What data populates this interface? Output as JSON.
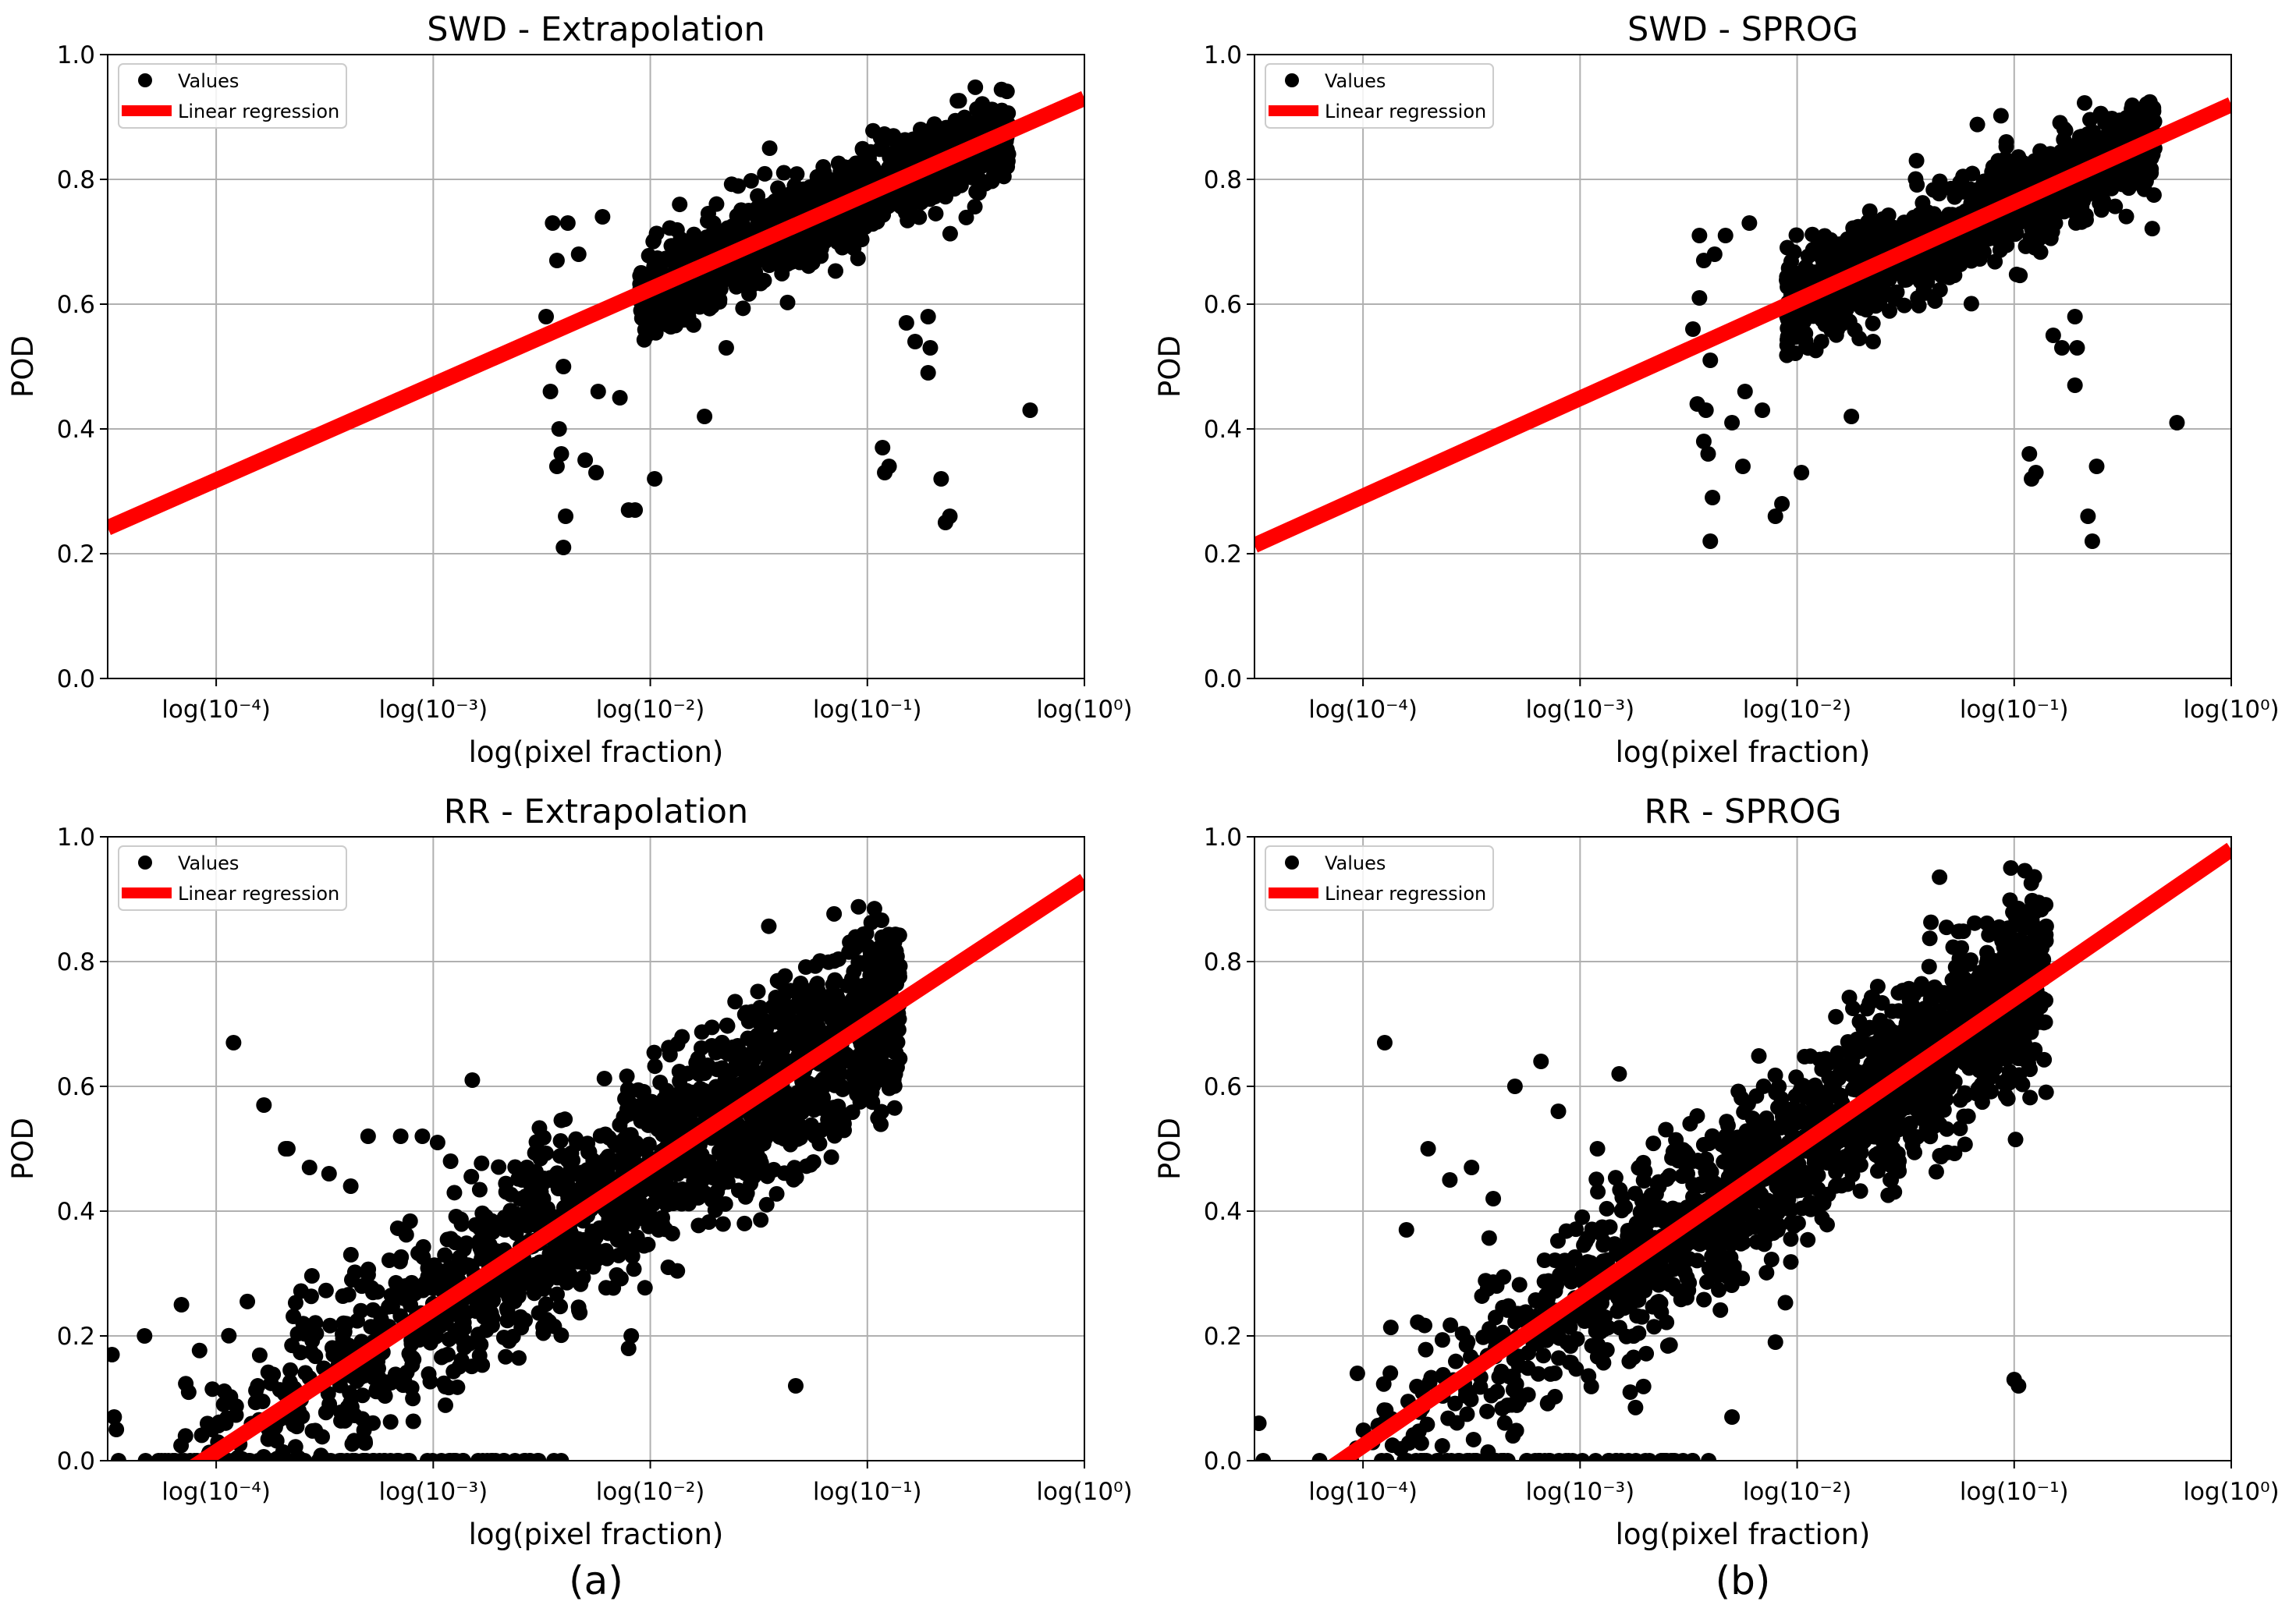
{
  "figure": {
    "captions": [
      "(a)",
      "(b)"
    ]
  },
  "colors": {
    "points": "#000000",
    "regression": "#ff0000",
    "grid": "#b0b0b0",
    "axes": "#000000",
    "legend_border": "#cccccc"
  },
  "chart_data": [
    {
      "id": "swd-extrapolation",
      "type": "scatter",
      "title": "SWD - Extrapolation",
      "xlabel": "log(pixel fraction)",
      "ylabel": "POD",
      "x_scale": "log10 exponent",
      "xlim": [
        -4.5,
        0
      ],
      "ylim": [
        0,
        1
      ],
      "xticks": [
        -4,
        -3,
        -2,
        -1,
        0
      ],
      "xtick_labels": [
        "log(10⁻⁴)",
        "log(10⁻³)",
        "log(10⁻²)",
        "log(10⁻¹)",
        "log(10⁰)"
      ],
      "yticks": [
        0,
        0.2,
        0.4,
        0.6,
        0.8,
        1.0
      ],
      "ytick_labels": [
        "0.0",
        "0.2",
        "0.4",
        "0.6",
        "0.8",
        "1.0"
      ],
      "grid": true,
      "legend": {
        "location": "upper-left",
        "entries": [
          "Values",
          "Linear regression"
        ]
      },
      "regression": {
        "slope": 0.153,
        "intercept": 0.93
      },
      "series": [
        {
          "name": "Values (dense cloud)",
          "generated": true,
          "x_range": [
            -2.05,
            -0.35
          ],
          "spread": 0.035,
          "count": 1100
        },
        {
          "name": "Values (outliers)",
          "points": [
            [
              -2.48,
              0.58
            ],
            [
              -2.45,
              0.73
            ],
            [
              -2.43,
              0.67
            ],
            [
              -2.38,
              0.73
            ],
            [
              -2.33,
              0.68
            ],
            [
              -2.22,
              0.74
            ],
            [
              -2.46,
              0.46
            ],
            [
              -2.43,
              0.34
            ],
            [
              -2.42,
              0.4
            ],
            [
              -2.41,
              0.36
            ],
            [
              -2.4,
              0.5
            ],
            [
              -2.39,
              0.26
            ],
            [
              -2.4,
              0.21
            ],
            [
              -2.3,
              0.35
            ],
            [
              -2.24,
              0.46
            ],
            [
              -2.25,
              0.33
            ],
            [
              -2.14,
              0.45
            ],
            [
              -2.1,
              0.27
            ],
            [
              -2.07,
              0.27
            ],
            [
              -1.98,
              0.32
            ],
            [
              -1.75,
              0.42
            ],
            [
              -1.65,
              0.53
            ],
            [
              -1.45,
              0.85
            ],
            [
              -0.93,
              0.37
            ],
            [
              -0.92,
              0.33
            ],
            [
              -0.9,
              0.34
            ],
            [
              -0.82,
              0.57
            ],
            [
              -0.78,
              0.54
            ],
            [
              -0.72,
              0.58
            ],
            [
              -0.72,
              0.49
            ],
            [
              -0.71,
              0.53
            ],
            [
              -0.66,
              0.32
            ],
            [
              -0.64,
              0.25
            ],
            [
              -0.62,
              0.26
            ],
            [
              -0.25,
              0.43
            ]
          ]
        }
      ]
    },
    {
      "id": "swd-sprog",
      "type": "scatter",
      "title": "SWD - SPROG",
      "xlabel": "log(pixel fraction)",
      "ylabel": "POD",
      "x_scale": "log10 exponent",
      "xlim": [
        -4.5,
        0
      ],
      "ylim": [
        0,
        1
      ],
      "xticks": [
        -4,
        -3,
        -2,
        -1,
        0
      ],
      "xtick_labels": [
        "log(10⁻⁴)",
        "log(10⁻³)",
        "log(10⁻²)",
        "log(10⁻¹)",
        "log(10⁰)"
      ],
      "yticks": [
        0,
        0.2,
        0.4,
        0.6,
        0.8,
        1.0
      ],
      "ytick_labels": [
        "0.0",
        "0.2",
        "0.4",
        "0.6",
        "0.8",
        "1.0"
      ],
      "grid": true,
      "legend": {
        "location": "upper-left",
        "entries": [
          "Values",
          "Linear regression"
        ]
      },
      "regression": {
        "slope": 0.157,
        "intercept": 0.92
      },
      "series": [
        {
          "name": "Values (dense cloud)",
          "generated": true,
          "x_range": [
            -2.05,
            -0.35
          ],
          "spread": 0.04,
          "count": 1100
        },
        {
          "name": "Values (outliers)",
          "points": [
            [
              -2.48,
              0.56
            ],
            [
              -2.45,
              0.71
            ],
            [
              -2.45,
              0.61
            ],
            [
              -2.43,
              0.67
            ],
            [
              -2.38,
              0.68
            ],
            [
              -2.33,
              0.71
            ],
            [
              -2.22,
              0.73
            ],
            [
              -2.46,
              0.44
            ],
            [
              -2.43,
              0.38
            ],
            [
              -2.42,
              0.43
            ],
            [
              -2.41,
              0.36
            ],
            [
              -2.4,
              0.51
            ],
            [
              -2.39,
              0.29
            ],
            [
              -2.4,
              0.22
            ],
            [
              -2.3,
              0.41
            ],
            [
              -2.24,
              0.46
            ],
            [
              -2.25,
              0.34
            ],
            [
              -2.16,
              0.43
            ],
            [
              -2.1,
              0.26
            ],
            [
              -2.07,
              0.28
            ],
            [
              -1.98,
              0.33
            ],
            [
              -1.75,
              0.42
            ],
            [
              -1.65,
              0.54
            ],
            [
              -1.45,
              0.83
            ],
            [
              -0.93,
              0.36
            ],
            [
              -0.92,
              0.32
            ],
            [
              -0.9,
              0.33
            ],
            [
              -0.82,
              0.55
            ],
            [
              -0.78,
              0.53
            ],
            [
              -0.72,
              0.58
            ],
            [
              -0.72,
              0.47
            ],
            [
              -0.71,
              0.53
            ],
            [
              -0.66,
              0.26
            ],
            [
              -0.64,
              0.22
            ],
            [
              -0.62,
              0.34
            ],
            [
              -0.25,
              0.41
            ]
          ]
        }
      ]
    },
    {
      "id": "rr-extrapolation",
      "type": "scatter",
      "title": "RR - Extrapolation",
      "xlabel": "log(pixel fraction)",
      "ylabel": "POD",
      "x_scale": "log10 exponent",
      "xlim": [
        -4.5,
        0
      ],
      "ylim": [
        0,
        1
      ],
      "xticks": [
        -4,
        -3,
        -2,
        -1,
        0
      ],
      "xtick_labels": [
        "log(10⁻⁴)",
        "log(10⁻³)",
        "log(10⁻²)",
        "log(10⁻¹)",
        "log(10⁰)"
      ],
      "yticks": [
        0,
        0.2,
        0.4,
        0.6,
        0.8,
        1.0
      ],
      "ytick_labels": [
        "0.0",
        "0.2",
        "0.4",
        "0.6",
        "0.8",
        "1.0"
      ],
      "grid": true,
      "legend": {
        "location": "upper-left",
        "entries": [
          "Values",
          "Linear regression"
        ]
      },
      "regression": {
        "slope": 0.229,
        "intercept": 0.93
      },
      "series": [
        {
          "name": "Values (dense cloud)",
          "generated": true,
          "x_range": [
            -4.4,
            -0.85
          ],
          "spread": 0.075,
          "count": 1800,
          "density_bias": 0.5
        },
        {
          "name": "Values (outliers)",
          "points": [
            [
              -4.48,
              0.17
            ],
            [
              -4.47,
              0.07
            ],
            [
              -4.46,
              0.05
            ],
            [
              -4.45,
              0.0
            ],
            [
              -4.33,
              0.2
            ],
            [
              -4.2,
              0.0
            ],
            [
              -4.16,
              0.25
            ],
            [
              -4.1,
              0.0
            ],
            [
              -3.92,
              0.67
            ],
            [
              -3.78,
              0.57
            ],
            [
              -3.68,
              0.5
            ],
            [
              -3.67,
              0.5
            ],
            [
              -3.57,
              0.47
            ],
            [
              -3.48,
              0.46
            ],
            [
              -3.38,
              0.44
            ],
            [
              -3.3,
              0.52
            ],
            [
              -3.15,
              0.52
            ],
            [
              -3.05,
              0.52
            ],
            [
              -2.98,
              0.51
            ],
            [
              -2.92,
              0.48
            ],
            [
              -2.82,
              0.61
            ],
            [
              -2.1,
              0.18
            ],
            [
              -1.33,
              0.12
            ]
          ]
        },
        {
          "name": "Values (zero row)",
          "generated": true,
          "row_y": 0.0,
          "x_range": [
            -3.9,
            -2.4
          ],
          "count": 60
        }
      ]
    },
    {
      "id": "rr-sprog",
      "type": "scatter",
      "title": "RR - SPROG",
      "xlabel": "log(pixel fraction)",
      "ylabel": "POD",
      "x_scale": "log10 exponent",
      "xlim": [
        -4.5,
        0
      ],
      "ylim": [
        0,
        1
      ],
      "xticks": [
        -4,
        -3,
        -2,
        -1,
        0
      ],
      "xtick_labels": [
        "log(10⁻⁴)",
        "log(10⁻³)",
        "log(10⁻²)",
        "log(10⁻¹)",
        "log(10⁰)"
      ],
      "yticks": [
        0,
        0.2,
        0.4,
        0.6,
        0.8,
        1.0
      ],
      "ytick_labels": [
        "0.0",
        "0.2",
        "0.4",
        "0.6",
        "0.8",
        "1.0"
      ],
      "grid": true,
      "legend": {
        "location": "upper-left",
        "entries": [
          "Values",
          "Linear regression"
        ]
      },
      "regression": {
        "slope": 0.239,
        "intercept": 0.98
      },
      "series": [
        {
          "name": "Values (dense cloud)",
          "generated": true,
          "x_range": [
            -4.1,
            -0.85
          ],
          "spread": 0.075,
          "count": 1800,
          "density_bias": 0.5
        },
        {
          "name": "Values (outliers)",
          "points": [
            [
              -4.48,
              0.06
            ],
            [
              -4.46,
              0.0
            ],
            [
              -4.2,
              0.0
            ],
            [
              -4.03,
              0.02
            ],
            [
              -3.9,
              0.67
            ],
            [
              -3.8,
              0.37
            ],
            [
              -3.7,
              0.5
            ],
            [
              -3.6,
              0.45
            ],
            [
              -3.5,
              0.47
            ],
            [
              -3.4,
              0.42
            ],
            [
              -3.3,
              0.6
            ],
            [
              -3.18,
              0.64
            ],
            [
              -3.1,
              0.56
            ],
            [
              -2.92,
              0.5
            ],
            [
              -2.82,
              0.62
            ],
            [
              -2.3,
              0.07
            ],
            [
              -2.1,
              0.19
            ],
            [
              -1.0,
              0.13
            ],
            [
              -0.98,
              0.12
            ]
          ]
        },
        {
          "name": "Values (zero row)",
          "generated": true,
          "row_y": 0.0,
          "x_range": [
            -3.85,
            -2.35
          ],
          "count": 60
        }
      ]
    }
  ]
}
